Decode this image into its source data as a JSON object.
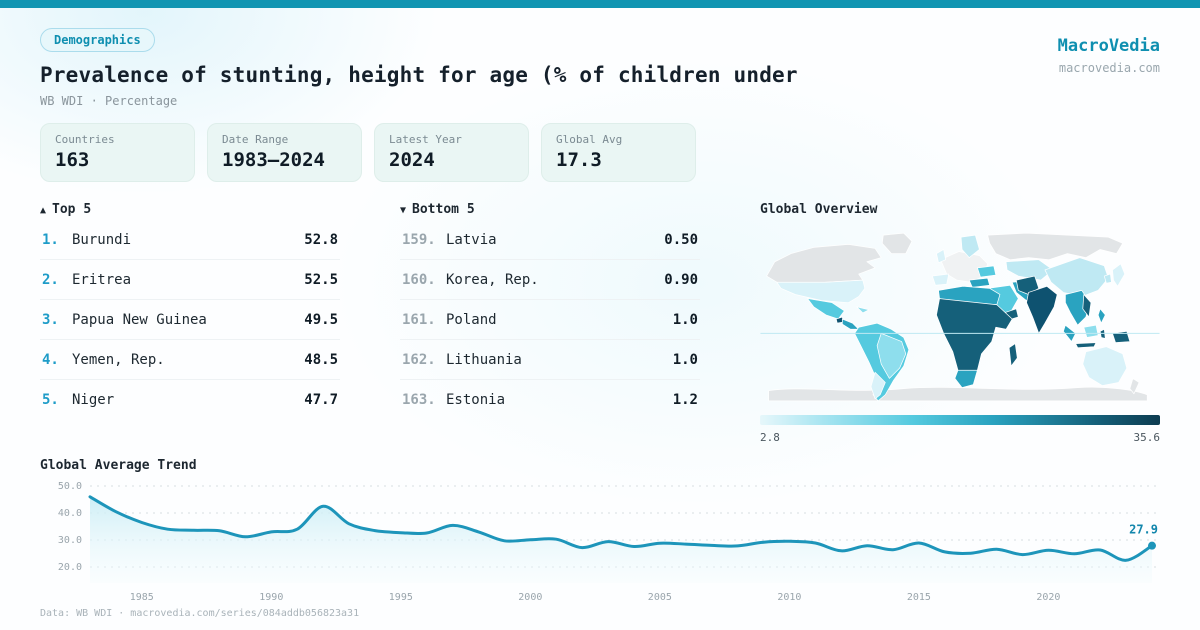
{
  "badge": "Demographics",
  "title": "Prevalence of stunting, height for age (% of children under",
  "subtitle": "WB WDI · Percentage",
  "brand": {
    "name": "MacroVedia",
    "domain": "macrovedia.com"
  },
  "stats": [
    {
      "label": "Countries",
      "value": "163"
    },
    {
      "label": "Date Range",
      "value": "1983—2024"
    },
    {
      "label": "Latest Year",
      "value": "2024"
    },
    {
      "label": "Global Avg",
      "value": "17.3"
    }
  ],
  "top5": {
    "arrow": "▲",
    "label": "Top 5",
    "items": [
      {
        "rank": "1.",
        "name": "Burundi",
        "value": "52.8"
      },
      {
        "rank": "2.",
        "name": "Eritrea",
        "value": "52.5"
      },
      {
        "rank": "3.",
        "name": "Papua New Guinea",
        "value": "49.5"
      },
      {
        "rank": "4.",
        "name": "Yemen, Rep.",
        "value": "48.5"
      },
      {
        "rank": "5.",
        "name": "Niger",
        "value": "47.7"
      }
    ]
  },
  "bottom5": {
    "arrow": "▼",
    "label": "Bottom 5",
    "items": [
      {
        "rank": "159.",
        "name": "Latvia",
        "value": "0.50"
      },
      {
        "rank": "160.",
        "name": "Korea, Rep.",
        "value": "0.90"
      },
      {
        "rank": "161.",
        "name": "Poland",
        "value": "1.0"
      },
      {
        "rank": "162.",
        "name": "Lithuania",
        "value": "1.0"
      },
      {
        "rank": "163.",
        "name": "Estonia",
        "value": "1.2"
      }
    ]
  },
  "map": {
    "title": "Global Overview",
    "scale_min": "2.8",
    "scale_max": "35.6"
  },
  "trend": {
    "title": "Global Average Trend"
  },
  "footer": "Data: WB WDI · macrovedia.com/series/084addb056823a31",
  "colors": {
    "accent": "#1195b2",
    "brand": "#0f8fb0",
    "rank_top": "#1e9cc8",
    "rank_bottom": "#9aa6ad",
    "line": "#1d95ba",
    "grid": "#d8dee2",
    "axis": "#9aa5ac",
    "map_nodata": "#e2e5e7",
    "map_white": "#f0f2f3",
    "map_xlight": "#d9f2f9",
    "map_vlight": "#bfe9f3",
    "map_light": "#8edeed",
    "map_cyan": "#55cadf",
    "map_mid": "#2aa3c0",
    "map_dark": "#15607a",
    "map_darkest": "#0e5270"
  },
  "chart_data": [
    {
      "type": "line",
      "title": "Global Average Trend",
      "x": [
        1983,
        1984,
        1985,
        1986,
        1987,
        1988,
        1989,
        1990,
        1991,
        1992,
        1993,
        1994,
        1995,
        1996,
        1997,
        1998,
        1999,
        2000,
        2001,
        2002,
        2003,
        2004,
        2005,
        2006,
        2007,
        2008,
        2009,
        2010,
        2011,
        2012,
        2013,
        2014,
        2015,
        2016,
        2017,
        2018,
        2019,
        2020,
        2021,
        2022,
        2023,
        2024
      ],
      "values": [
        46.0,
        40.5,
        36.5,
        34.0,
        33.6,
        33.4,
        31.2,
        33.0,
        34.0,
        42.5,
        36.0,
        33.5,
        32.7,
        32.6,
        35.4,
        33.0,
        29.7,
        30.1,
        30.3,
        27.2,
        29.4,
        27.6,
        28.8,
        28.5,
        28.0,
        27.8,
        29.2,
        29.5,
        28.9,
        26.0,
        27.9,
        26.4,
        28.9,
        25.6,
        25.1,
        26.6,
        24.6,
        26.2,
        24.9,
        26.3,
        22.5,
        27.9
      ],
      "xlabel": "",
      "ylabel": "",
      "ylim": [
        15,
        52
      ],
      "yticks": [
        20,
        30,
        40,
        50
      ],
      "ytick_labels": [
        "20.0",
        "30.0",
        "40.0",
        "50.0"
      ],
      "xticks": [
        1985,
        1990,
        1995,
        2000,
        2005,
        2010,
        2015,
        2020
      ],
      "grid": true,
      "legend": false,
      "end_label": "27.9"
    },
    {
      "type": "heatmap",
      "subtype": "world-choropleth",
      "title": "Global Overview",
      "value_range": [
        2.8,
        35.6
      ],
      "legend_labels": [
        "2.8",
        "35.6"
      ],
      "note": "Darker teal = higher stunting prevalence (Africa, South Asia dark; Americas mid; Europe light/no-data gray)"
    }
  ]
}
